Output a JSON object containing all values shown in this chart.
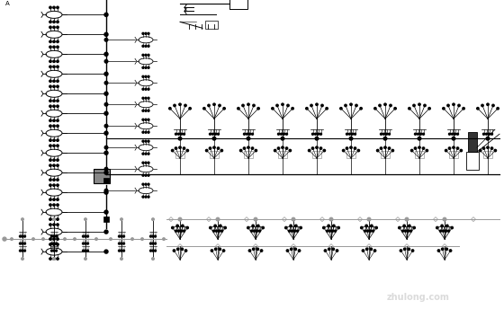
{
  "bg_color": "#ffffff",
  "line_color": "#000000",
  "gray_color": "#999999",
  "dark_gray": "#555555",
  "watermark_text": "zhulong.com",
  "watermark_color": "#cccccc",
  "label_A": "A"
}
